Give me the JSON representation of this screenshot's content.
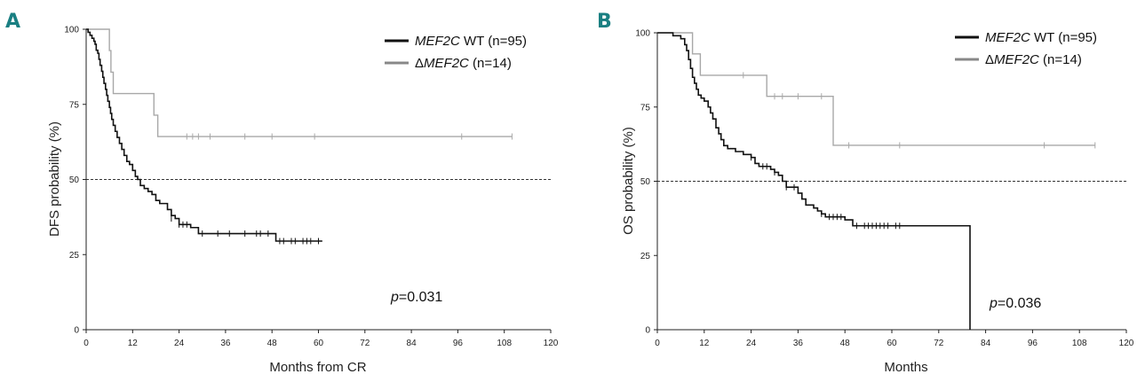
{
  "chart_data": [
    {
      "type": "line",
      "panel": "A",
      "ylabel": "DFS probability (%)",
      "xlabel": "Months from CR",
      "xticks": [
        0,
        12,
        24,
        36,
        48,
        60,
        72,
        84,
        96,
        108,
        120
      ],
      "yticks": [
        0,
        25,
        50,
        75,
        100
      ],
      "xlim": [
        0,
        120
      ],
      "ylim": [
        0,
        100
      ],
      "reference_line_y": 50,
      "pvalue": {
        "label": "p",
        "value": "=0.031"
      },
      "series": [
        {
          "name": "MEF2C WT (n=95)",
          "legend_italic": "MEF2C",
          "legend_rest": " WT (n=95)",
          "color": "#111111",
          "steps": [
            [
              0,
              100
            ],
            [
              0.5,
              99
            ],
            [
              1,
              98
            ],
            [
              1.5,
              97
            ],
            [
              2,
              96
            ],
            [
              2.3,
              95
            ],
            [
              2.6,
              93
            ],
            [
              3,
              92
            ],
            [
              3.3,
              90
            ],
            [
              3.6,
              88
            ],
            [
              4,
              86
            ],
            [
              4.3,
              84
            ],
            [
              4.6,
              82
            ],
            [
              5,
              80
            ],
            [
              5.3,
              78
            ],
            [
              5.6,
              76
            ],
            [
              6,
              74
            ],
            [
              6.3,
              72
            ],
            [
              6.6,
              70
            ],
            [
              7,
              68
            ],
            [
              7.5,
              66
            ],
            [
              8,
              64
            ],
            [
              8.6,
              62
            ],
            [
              9.2,
              60
            ],
            [
              9.8,
              58
            ],
            [
              10.5,
              56
            ],
            [
              11.2,
              55
            ],
            [
              12,
              53
            ],
            [
              12.7,
              51
            ],
            [
              13.3,
              50
            ],
            [
              14,
              48
            ],
            [
              15,
              47
            ],
            [
              16,
              46
            ],
            [
              17,
              45
            ],
            [
              18,
              43
            ],
            [
              19,
              42
            ],
            [
              21,
              40
            ],
            [
              22,
              38
            ],
            [
              23,
              37
            ],
            [
              24,
              35
            ],
            [
              27,
              34
            ],
            [
              29,
              32
            ],
            [
              45,
              32
            ],
            [
              49,
              29.5
            ],
            [
              61,
              29.5
            ]
          ],
          "censors": [
            [
              22,
              37
            ],
            [
              24,
              35
            ],
            [
              25,
              35
            ],
            [
              26,
              35
            ],
            [
              30,
              32
            ],
            [
              34,
              32
            ],
            [
              37,
              32
            ],
            [
              41,
              32
            ],
            [
              44,
              32
            ],
            [
              45,
              32
            ],
            [
              47,
              32
            ],
            [
              50,
              29.5
            ],
            [
              51,
              29.5
            ],
            [
              53,
              29.5
            ],
            [
              54,
              29.5
            ],
            [
              56,
              29.5
            ],
            [
              57,
              29.5
            ],
            [
              58,
              29.5
            ],
            [
              60,
              29.5
            ]
          ]
        },
        {
          "name": "ΔMEF2C (n=14)",
          "legend_prefix": "Δ",
          "legend_italic": "MEF2C",
          "legend_rest": " (n=14)",
          "color": "#a8a8a8",
          "steps": [
            [
              0,
              100
            ],
            [
              6,
              92.9
            ],
            [
              6.4,
              85.7
            ],
            [
              7,
              78.6
            ],
            [
              17.5,
              71.4
            ],
            [
              18.5,
              64.3
            ],
            [
              110,
              64.3
            ]
          ],
          "censors": [
            [
              26,
              64.3
            ],
            [
              27.5,
              64.3
            ],
            [
              29,
              64.3
            ],
            [
              32,
              64.3
            ],
            [
              41,
              64.3
            ],
            [
              48,
              64.3
            ],
            [
              59,
              64.3
            ],
            [
              97,
              64.3
            ],
            [
              110,
              64.3
            ]
          ]
        }
      ]
    },
    {
      "type": "line",
      "panel": "B",
      "ylabel": "OS probability (%)",
      "xlabel": "Months",
      "xticks": [
        0,
        12,
        24,
        36,
        48,
        60,
        72,
        84,
        96,
        108,
        120
      ],
      "yticks": [
        0,
        25,
        50,
        75,
        100
      ],
      "xlim": [
        0,
        120
      ],
      "ylim": [
        0,
        100
      ],
      "reference_line_y": 50,
      "pvalue": {
        "label": "p",
        "value": "=0.036"
      },
      "series": [
        {
          "name": "MEF2C WT (n=95)",
          "legend_italic": "MEF2C",
          "legend_rest": " WT (n=95)",
          "color": "#111111",
          "steps": [
            [
              0,
              100
            ],
            [
              4,
              99
            ],
            [
              6,
              98
            ],
            [
              7,
              96
            ],
            [
              7.5,
              94
            ],
            [
              8,
              91
            ],
            [
              8.5,
              88
            ],
            [
              9,
              85
            ],
            [
              9.5,
              83
            ],
            [
              10,
              81
            ],
            [
              10.5,
              79
            ],
            [
              11.2,
              78
            ],
            [
              12,
              77
            ],
            [
              13,
              75
            ],
            [
              13.6,
              73
            ],
            [
              14.2,
              71
            ],
            [
              15,
              68
            ],
            [
              15.7,
              66
            ],
            [
              16.3,
              64
            ],
            [
              17,
              62
            ],
            [
              18,
              61
            ],
            [
              20,
              60
            ],
            [
              22,
              59
            ],
            [
              24,
              58
            ],
            [
              25,
              56
            ],
            [
              26,
              55
            ],
            [
              29,
              54
            ],
            [
              30,
              53
            ],
            [
              31,
              52
            ],
            [
              32,
              50
            ],
            [
              33,
              48
            ],
            [
              36,
              46
            ],
            [
              37,
              44
            ],
            [
              38,
              42
            ],
            [
              40,
              41
            ],
            [
              41,
              40
            ],
            [
              42,
              39
            ],
            [
              43,
              38
            ],
            [
              48,
              37
            ],
            [
              50,
              35
            ],
            [
              80,
              35
            ],
            [
              80,
              0
            ]
          ],
          "censors": [
            [
              24,
              58
            ],
            [
              27,
              55
            ],
            [
              28,
              55
            ],
            [
              30,
              53
            ],
            [
              33,
              48
            ],
            [
              35,
              48
            ],
            [
              42,
              39
            ],
            [
              44,
              38
            ],
            [
              45,
              38
            ],
            [
              46,
              38
            ],
            [
              47,
              38
            ],
            [
              51,
              35
            ],
            [
              53,
              35
            ],
            [
              54,
              35
            ],
            [
              55,
              35
            ],
            [
              56,
              35
            ],
            [
              57,
              35
            ],
            [
              58,
              35
            ],
            [
              59,
              35
            ],
            [
              61,
              35
            ],
            [
              62,
              35
            ]
          ]
        },
        {
          "name": "ΔMEF2C (n=14)",
          "legend_prefix": "Δ",
          "legend_italic": "MEF2C",
          "legend_rest": " (n=14)",
          "color": "#a8a8a8",
          "steps": [
            [
              0,
              100
            ],
            [
              9,
              92.9
            ],
            [
              11,
              85.7
            ],
            [
              28,
              78.6
            ],
            [
              45,
              62.1
            ],
            [
              112,
              62.1
            ]
          ],
          "censors": [
            [
              22,
              85.7
            ],
            [
              30,
              78.6
            ],
            [
              32,
              78.6
            ],
            [
              36,
              78.6
            ],
            [
              42,
              78.6
            ],
            [
              49,
              62.1
            ],
            [
              62,
              62.1
            ],
            [
              99,
              62.1
            ],
            [
              112,
              62.1
            ]
          ]
        }
      ]
    }
  ]
}
